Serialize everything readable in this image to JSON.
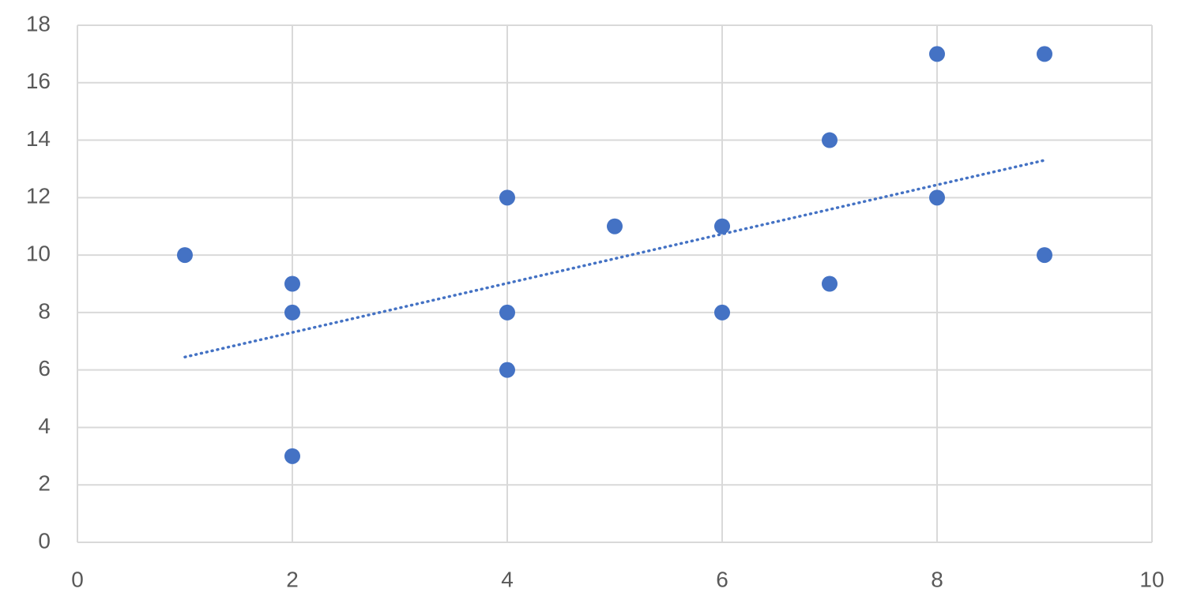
{
  "chart_data": {
    "type": "scatter",
    "x": [
      1,
      2,
      2,
      2,
      4,
      4,
      4,
      5,
      6,
      6,
      7,
      7,
      8,
      8,
      9,
      9
    ],
    "values": [
      10,
      9,
      8,
      3,
      12,
      8,
      6,
      11,
      11,
      8,
      14,
      9,
      17,
      12,
      17,
      10
    ],
    "color": "#4472c4",
    "trendline": {
      "x": [
        1,
        9
      ],
      "values": [
        6.45,
        13.3
      ],
      "color": "#4472c4"
    },
    "xlim": [
      0,
      10
    ],
    "xticks": [
      0,
      2,
      4,
      6,
      8,
      10
    ],
    "ylim": [
      0,
      18
    ],
    "yticks": [
      0,
      2,
      4,
      6,
      8,
      10,
      12,
      14,
      16,
      18
    ],
    "grid": true
  }
}
